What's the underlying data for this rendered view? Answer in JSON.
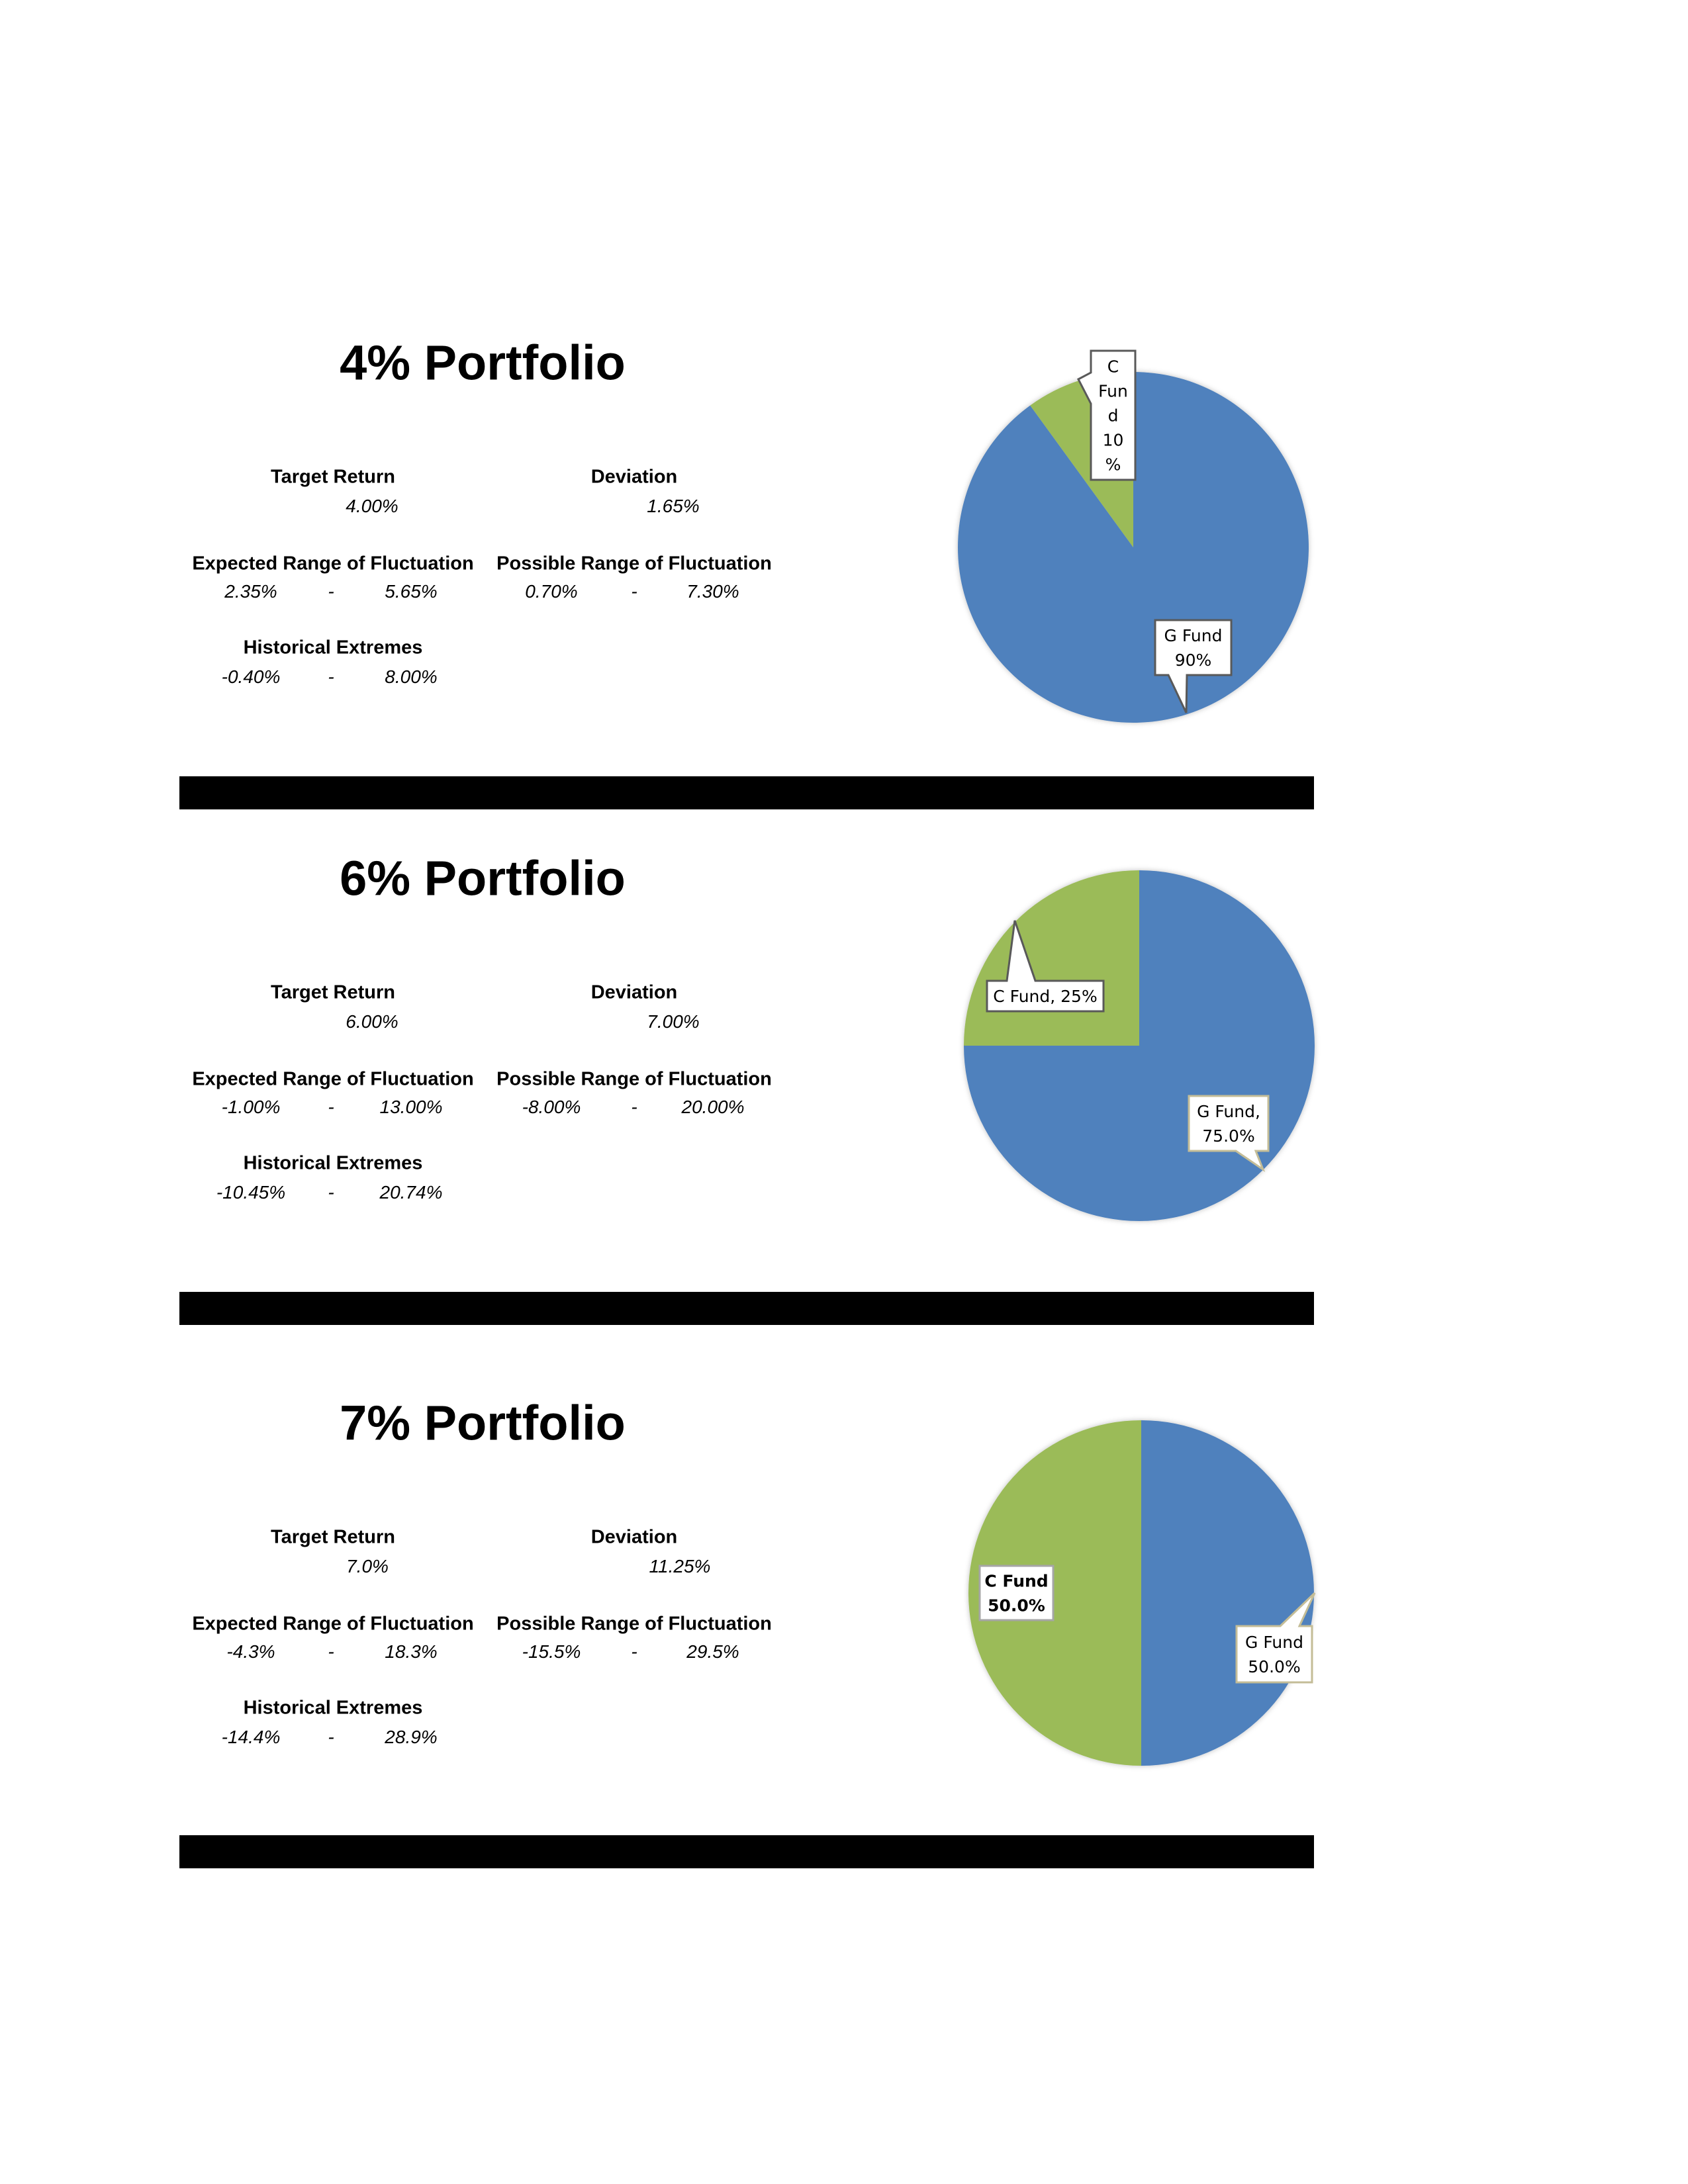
{
  "sections": [
    {
      "title": "4% Portfolio",
      "target_return": {
        "label": "Target Return",
        "value": "4.00%"
      },
      "deviation": {
        "label": "Deviation",
        "value": "1.65%"
      },
      "expected_range": {
        "label": "Expected Range of Fluctuation",
        "low": "2.35%",
        "sep": "-",
        "high": "5.65%"
      },
      "possible_range": {
        "label": "Possible Range of Fluctuation",
        "low": "0.70%",
        "sep": "-",
        "high": "7.30%"
      },
      "historical_extremes": {
        "label": "Historical Extremes",
        "low": "-0.40%",
        "sep": "-",
        "high": "8.00%"
      }
    },
    {
      "title": "6% Portfolio",
      "target_return": {
        "label": "Target Return",
        "value": "6.00%"
      },
      "deviation": {
        "label": "Deviation",
        "value": "7.00%"
      },
      "expected_range": {
        "label": "Expected Range of Fluctuation",
        "low": "-1.00%",
        "sep": "-",
        "high": "13.00%"
      },
      "possible_range": {
        "label": "Possible Range of Fluctuation",
        "low": "-8.00%",
        "sep": "-",
        "high": "20.00%"
      },
      "historical_extremes": {
        "label": "Historical Extremes",
        "low": "-10.45%",
        "sep": "-",
        "high": "20.74%"
      }
    },
    {
      "title": "7% Portfolio",
      "target_return": {
        "label": "Target Return",
        "value": "7.0%"
      },
      "deviation": {
        "label": "Deviation",
        "value": "11.25%"
      },
      "expected_range": {
        "label": "Expected Range of Fluctuation",
        "low": "-4.3%",
        "sep": "-",
        "high": "18.3%"
      },
      "possible_range": {
        "label": "Possible Range of Fluctuation",
        "low": "-15.5%",
        "sep": "-",
        "high": "29.5%"
      },
      "historical_extremes": {
        "label": "Historical Extremes",
        "low": "-14.4%",
        "sep": "-",
        "high": "28.9%"
      }
    }
  ],
  "chart_data": [
    {
      "type": "pie",
      "slices": [
        {
          "name": "G Fund",
          "value": 90,
          "color": "#4f81bd",
          "label_lines": [
            "G Fund",
            "90%"
          ]
        },
        {
          "name": "C Fund",
          "value": 10,
          "color": "#9bbb59",
          "label_lines": [
            "C",
            "Fun",
            "d",
            "10",
            "%"
          ]
        }
      ]
    },
    {
      "type": "pie",
      "slices": [
        {
          "name": "G Fund",
          "value": 75,
          "color": "#4f81bd",
          "label_lines": [
            "G Fund,",
            "75.0%"
          ]
        },
        {
          "name": "C Fund",
          "value": 25,
          "color": "#9bbb59",
          "label_lines": [
            "C Fund, 25%"
          ]
        }
      ]
    },
    {
      "type": "pie",
      "slices": [
        {
          "name": "G Fund",
          "value": 50,
          "color": "#4f81bd",
          "label_lines": [
            "G Fund",
            "50.0%"
          ]
        },
        {
          "name": "C Fund",
          "value": 50,
          "color": "#9bbb59",
          "label_lines": [
            "C Fund",
            "50.0%"
          ],
          "bold": true
        }
      ]
    }
  ]
}
